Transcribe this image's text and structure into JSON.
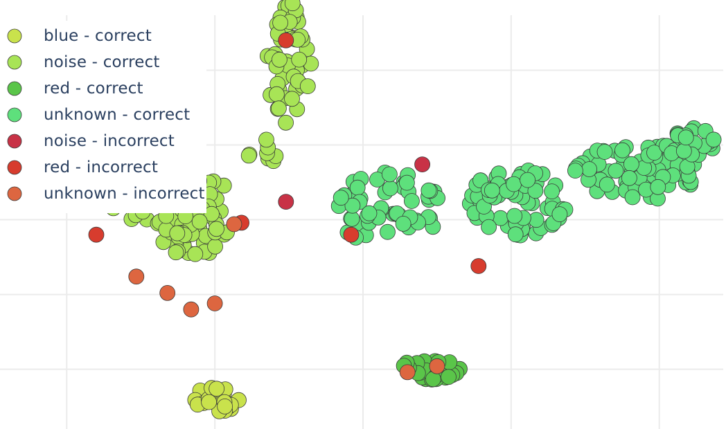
{
  "chart_data": {
    "type": "scatter",
    "title": "",
    "xlabel": "",
    "ylabel": "",
    "grid": true,
    "legend_position": "top-left",
    "xlim": [
      -1.45,
      3.45
    ],
    "ylim": [
      -1.4,
      1.47
    ],
    "series": [
      {
        "name": "blue - correct",
        "color": "#c9e24c",
        "clusters": [
          {
            "cx": 0.0,
            "cy": -1.2,
            "rx": 0.17,
            "ry": 0.1,
            "n": 24
          }
        ]
      },
      {
        "name": "noise - correct",
        "color": "#a8e456",
        "clusters": [
          {
            "cx": 0.5,
            "cy": 1.05,
            "rx": 0.15,
            "ry": 0.42,
            "n": 55
          },
          {
            "cx": -0.3,
            "cy": 0.14,
            "rx": 0.44,
            "ry": 0.18,
            "n": 55
          },
          {
            "cx": -0.15,
            "cy": -0.08,
            "rx": 0.25,
            "ry": 0.16,
            "n": 45
          },
          {
            "cx": 0.3,
            "cy": 0.45,
            "rx": 0.12,
            "ry": 0.1,
            "n": 8
          }
        ]
      },
      {
        "name": "red - correct",
        "color": "#5ac549",
        "clusters": [
          {
            "cx": 1.45,
            "cy": -1.0,
            "rx": 0.22,
            "ry": 0.07,
            "n": 30
          }
        ]
      },
      {
        "name": "unknown - correct",
        "color": "#5ee07c",
        "clusters": [
          {
            "cx": 1.15,
            "cy": 0.08,
            "rx": 0.38,
            "ry": 0.24,
            "n": 55
          },
          {
            "cx": 2.05,
            "cy": 0.12,
            "rx": 0.33,
            "ry": 0.24,
            "n": 70
          },
          {
            "cx": 2.85,
            "cy": 0.32,
            "rx": 0.42,
            "ry": 0.2,
            "n": 75
          },
          {
            "cx": 3.2,
            "cy": 0.52,
            "rx": 0.18,
            "ry": 0.1,
            "n": 25
          }
        ]
      },
      {
        "name": "noise - incorrect",
        "color": "#c83246",
        "points": [
          [
            0.48,
            0.12
          ],
          [
            1.4,
            0.37
          ]
        ]
      },
      {
        "name": "red - incorrect",
        "color": "#d73c2e",
        "points": [
          [
            -0.8,
            -0.1
          ],
          [
            0.48,
            1.2
          ],
          [
            0.18,
            -0.02
          ],
          [
            0.92,
            -0.1
          ],
          [
            1.78,
            -0.31
          ]
        ]
      },
      {
        "name": "unknown - incorrect",
        "color": "#dd6640",
        "points": [
          [
            -0.53,
            -0.38
          ],
          [
            -0.32,
            -0.49
          ],
          [
            -0.16,
            -0.6
          ],
          [
            0.0,
            -0.56
          ],
          [
            0.13,
            -0.03
          ],
          [
            1.3,
            -1.02
          ],
          [
            1.5,
            -0.98
          ]
        ]
      }
    ]
  }
}
